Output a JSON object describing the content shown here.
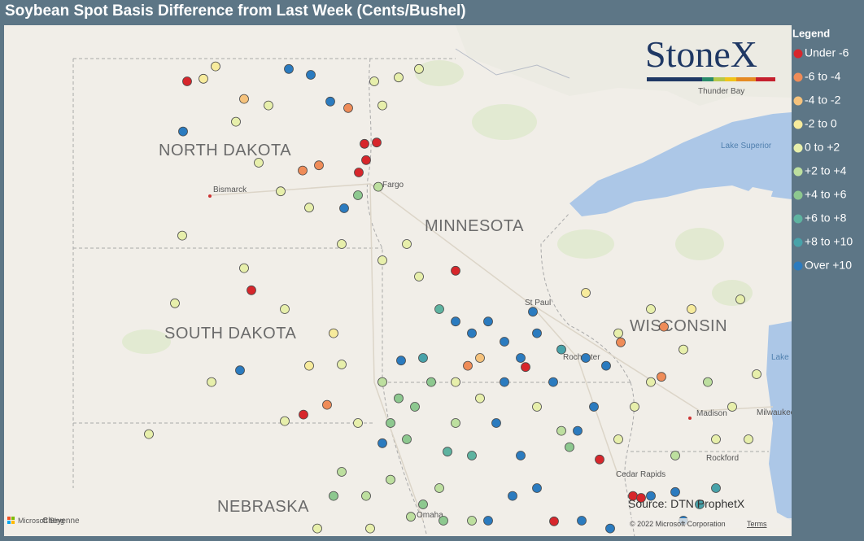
{
  "map": {
    "title": "Soybean Spot Basis Difference from Last Week (Cents/Bushel)",
    "legend": {
      "title": "Legend",
      "items": [
        {
          "label": "Under -6",
          "color": "#d7262b"
        },
        {
          "label": "-6 to -4",
          "color": "#ef8c58"
        },
        {
          "label": "-4 to -2",
          "color": "#f5c27c"
        },
        {
          "label": "-2 to 0",
          "color": "#f7eb9c"
        },
        {
          "label": "0 to +2",
          "color": "#e7efab"
        },
        {
          "label": "+2 to +4",
          "color": "#bddf9f"
        },
        {
          "label": "+4 to +6",
          "color": "#8dc88f"
        },
        {
          "label": "+6 to +8",
          "color": "#5eb3a0"
        },
        {
          "label": "+8 to +10",
          "color": "#48a2a9"
        },
        {
          "label": "Over +10",
          "color": "#2b7bbf"
        }
      ]
    },
    "labels": [
      "NORTH DAKOTA",
      "MINNESOTA",
      "SOUTH DAKOTA",
      "WISCONSIN",
      "NEBRASKA",
      "Bismarck",
      "Fargo",
      "St Paul",
      "Rochester",
      "Madison",
      "Milwaukee",
      "Rockford",
      "Omaha",
      "Cheyenne",
      "Thunder Bay",
      "Lake Superior",
      "Lake Michigan",
      "Cedar Rapids"
    ],
    "logo": "StoneX",
    "source": "Source: DTN ProphetX",
    "copyright": "© 2022 Microsoft Corporation",
    "terms": "Terms",
    "bing": "Microsoft Bing",
    "points": [
      [
        -101.4,
        48.75,
        0
      ],
      [
        -101.0,
        48.79,
        3
      ],
      [
        -100.7,
        48.98,
        3
      ],
      [
        -100.0,
        48.48,
        2
      ],
      [
        -98.9,
        48.94,
        9
      ],
      [
        -98.36,
        48.85,
        9
      ],
      [
        -97.88,
        48.44,
        9
      ],
      [
        -97.44,
        48.34,
        1
      ],
      [
        -97.04,
        47.79,
        0
      ],
      [
        -96.74,
        47.81,
        0
      ],
      [
        -97.0,
        47.54,
        0
      ],
      [
        -97.18,
        47.35,
        0
      ],
      [
        -98.56,
        47.38,
        1
      ],
      [
        -98.16,
        47.46,
        1
      ],
      [
        -101.5,
        47.98,
        9
      ],
      [
        -100.2,
        48.13,
        4
      ],
      [
        -99.4,
        48.38,
        4
      ],
      [
        -99.64,
        47.5,
        4
      ],
      [
        -99.1,
        47.06,
        4
      ],
      [
        -98.4,
        46.81,
        4
      ],
      [
        -97.54,
        46.8,
        9
      ],
      [
        -97.2,
        47.0,
        6
      ],
      [
        -96.7,
        47.13,
        5
      ],
      [
        -96.8,
        48.75,
        4
      ],
      [
        -96.2,
        48.81,
        4
      ],
      [
        -95.7,
        48.94,
        4
      ],
      [
        -96.6,
        48.38,
        4
      ],
      [
        -101.52,
        46.38,
        4
      ],
      [
        -99.82,
        45.54,
        0
      ],
      [
        -100.1,
        44.31,
        9
      ],
      [
        -98.54,
        43.63,
        0
      ],
      [
        -97.96,
        43.78,
        1
      ],
      [
        -98.4,
        44.38,
        3
      ],
      [
        -97.8,
        44.88,
        3
      ],
      [
        -100.0,
        45.88,
        4
      ],
      [
        -99.0,
        45.25,
        4
      ],
      [
        -97.6,
        46.25,
        4
      ],
      [
        -96.6,
        46.0,
        4
      ],
      [
        -95.7,
        45.75,
        4
      ],
      [
        -94.8,
        45.84,
        0
      ],
      [
        -96.0,
        46.25,
        4
      ],
      [
        -101.7,
        45.34,
        4
      ],
      [
        -100.8,
        44.13,
        4
      ],
      [
        -102.34,
        43.33,
        4
      ],
      [
        -95.2,
        45.25,
        7
      ],
      [
        -94.8,
        45.06,
        9
      ],
      [
        -94.4,
        44.88,
        9
      ],
      [
        -94.0,
        45.06,
        9
      ],
      [
        -93.6,
        44.75,
        9
      ],
      [
        -93.2,
        44.5,
        9
      ],
      [
        -92.8,
        44.88,
        9
      ],
      [
        -92.9,
        45.21,
        9
      ],
      [
        -92.2,
        44.63,
        8
      ],
      [
        -91.6,
        44.5,
        9
      ],
      [
        -91.1,
        44.38,
        9
      ],
      [
        -91.4,
        43.75,
        9
      ],
      [
        -91.8,
        43.38,
        9
      ],
      [
        -92.4,
        44.13,
        9
      ],
      [
        -93.6,
        44.13,
        9
      ],
      [
        -93.8,
        43.5,
        9
      ],
      [
        -93.2,
        43.0,
        9
      ],
      [
        -92.8,
        42.5,
        9
      ],
      [
        -93.4,
        42.38,
        9
      ],
      [
        -94.0,
        42.0,
        9
      ],
      [
        -91.7,
        42.0,
        9
      ],
      [
        -91.0,
        41.88,
        9
      ],
      [
        -90.0,
        42.38,
        9
      ],
      [
        -89.4,
        42.44,
        9
      ],
      [
        -89.2,
        42.0,
        9
      ],
      [
        -88.8,
        42.25,
        8
      ],
      [
        -88.4,
        42.5,
        8
      ],
      [
        -94.5,
        44.38,
        1
      ],
      [
        -94.2,
        44.5,
        2
      ],
      [
        -93.08,
        44.36,
        0
      ],
      [
        -92.38,
        41.99,
        0
      ],
      [
        -91.26,
        42.94,
        0
      ],
      [
        -90.44,
        42.38,
        0
      ],
      [
        -90.24,
        42.35,
        0
      ],
      [
        -90.74,
        44.74,
        1
      ],
      [
        -89.74,
        44.21,
        1
      ],
      [
        -89.68,
        44.98,
        1
      ],
      [
        -96.2,
        43.88,
        6
      ],
      [
        -95.8,
        43.75,
        6
      ],
      [
        -95.4,
        44.13,
        6
      ],
      [
        -96.4,
        43.5,
        6
      ],
      [
        -96.0,
        43.25,
        6
      ],
      [
        -96.6,
        43.19,
        9
      ],
      [
        -95.0,
        43.06,
        7
      ],
      [
        -94.4,
        43.0,
        7
      ],
      [
        -94.8,
        43.5,
        5
      ],
      [
        -95.2,
        42.5,
        5
      ],
      [
        -95.6,
        42.25,
        6
      ],
      [
        -96.4,
        42.63,
        5
      ],
      [
        -97.0,
        42.38,
        5
      ],
      [
        -97.8,
        42.38,
        6
      ],
      [
        -97.6,
        42.75,
        5
      ],
      [
        -97.2,
        43.5,
        4
      ],
      [
        -96.6,
        44.13,
        5
      ],
      [
        -96.14,
        44.46,
        9
      ],
      [
        -95.6,
        44.5,
        8
      ],
      [
        -94.8,
        44.13,
        4
      ],
      [
        -94.2,
        43.88,
        4
      ],
      [
        -92.8,
        43.75,
        4
      ],
      [
        -92.2,
        43.38,
        5
      ],
      [
        -92.0,
        43.13,
        6
      ],
      [
        -90.8,
        43.25,
        4
      ],
      [
        -90.4,
        43.75,
        4
      ],
      [
        -90.0,
        44.13,
        4
      ],
      [
        -89.2,
        44.63,
        4
      ],
      [
        -88.6,
        44.13,
        5
      ],
      [
        -88.0,
        43.75,
        4
      ],
      [
        -87.4,
        44.25,
        4
      ],
      [
        -88.4,
        43.25,
        4
      ],
      [
        -89.4,
        43.0,
        5
      ],
      [
        -87.6,
        43.25,
        4
      ],
      [
        -90.0,
        45.25,
        4
      ],
      [
        -91.6,
        45.5,
        3
      ],
      [
        -90.8,
        44.88,
        4
      ],
      [
        -89.0,
        45.25,
        3
      ],
      [
        -87.8,
        45.4,
        4
      ],
      [
        -94.4,
        42.0,
        5
      ],
      [
        -95.1,
        42.0,
        6
      ],
      [
        -95.9,
        42.06,
        5
      ],
      [
        -96.9,
        41.88,
        4
      ],
      [
        -98.2,
        41.88,
        4
      ],
      [
        -99.0,
        43.53,
        4
      ],
      [
        -97.6,
        44.4,
        4
      ]
    ]
  }
}
